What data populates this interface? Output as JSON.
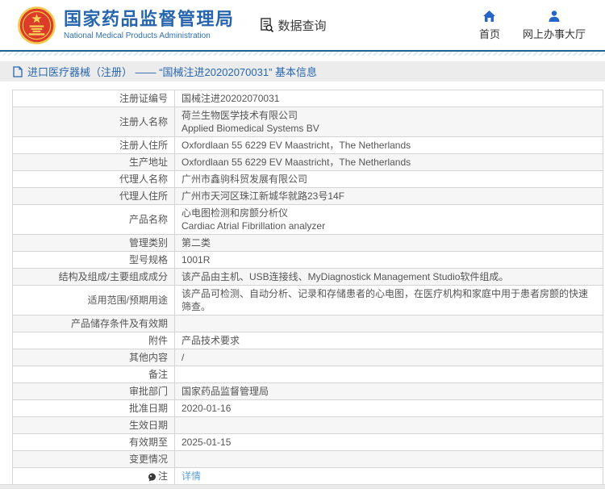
{
  "header": {
    "title": "国家药品监督管理局",
    "subtitle": "National Medical Products Administration",
    "data_query_label": "数据查询",
    "nav": [
      {
        "label": "首页",
        "icon": "home-icon"
      },
      {
        "label": "网上办事大厅",
        "icon": "person-icon"
      }
    ]
  },
  "breadcrumb": {
    "text": "进口医疗器械（注册） —— “国械注进20202070031” 基本信息"
  },
  "table": {
    "rows": [
      {
        "label": "注册证编号",
        "value": "国械注进20202070031"
      },
      {
        "label": "注册人名称",
        "value": "荷兰生物医学技术有限公司\nApplied Biomedical Systems BV"
      },
      {
        "label": "注册人住所",
        "value": "Oxfordlaan 55 6229 EV Maastricht，The Netherlands"
      },
      {
        "label": "生产地址",
        "value": "Oxfordlaan 55 6229 EV Maastricht，The Netherlands"
      },
      {
        "label": "代理人名称",
        "value": "广州市鑫驹科贸发展有限公司"
      },
      {
        "label": "代理人住所",
        "value": "广州市天河区珠江新城华就路23号14F"
      },
      {
        "label": "产品名称",
        "value": "心电图检测和房颤分析仪\nCardiac Atrial Fibrillation analyzer"
      },
      {
        "label": "管理类别",
        "value": "第二类"
      },
      {
        "label": "型号规格",
        "value": "1001R"
      },
      {
        "label": "结构及组成/主要组成成分",
        "value": "该产品由主机、USB连接线、MyDiagnostick Management Studio软件组成。"
      },
      {
        "label": "适用范围/预期用途",
        "value": "该产品可检测、自动分析、记录和存储患者的心电图，在医疗机构和家庭中用于患者房颤的快速筛查。"
      },
      {
        "label": "产品储存条件及有效期",
        "value": ""
      },
      {
        "label": "附件",
        "value": "产品技术要求"
      },
      {
        "label": "其他内容",
        "value": "/"
      },
      {
        "label": "备注",
        "value": ""
      },
      {
        "label": "审批部门",
        "value": "国家药品监督管理局"
      },
      {
        "label": "批准日期",
        "value": "2020-01-16"
      },
      {
        "label": "生效日期",
        "value": ""
      },
      {
        "label": "有效期至",
        "value": "2025-01-15"
      },
      {
        "label": "变更情况",
        "value": ""
      },
      {
        "label": "注",
        "value": "详情",
        "label_icon": "note-icon",
        "value_is_link": true
      }
    ]
  },
  "colors": {
    "brand_blue": "#2766ae",
    "nav_icon_blue": "#2565c7",
    "header_rule_blue": "#1b6191",
    "link_blue": "#5b9fd8",
    "stripe_gray": "#f6f6f6",
    "border_gray": "#d4d4d4",
    "emblem_red": "#dd3b2a",
    "emblem_gold": "#f3c84d"
  }
}
